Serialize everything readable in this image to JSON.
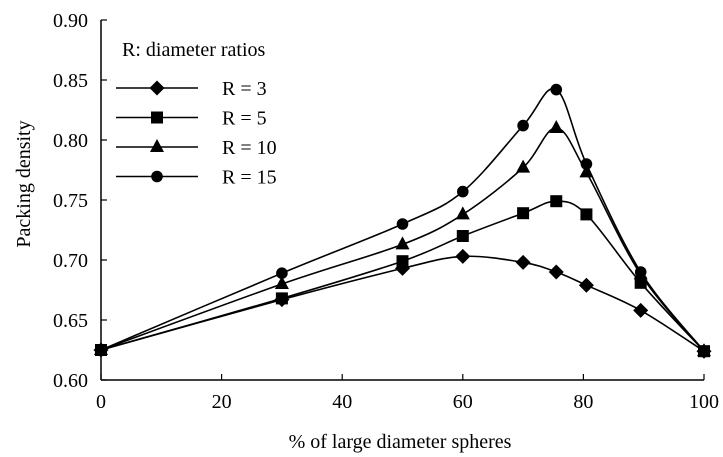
{
  "chart_data": {
    "type": "line",
    "title": "",
    "xlabel": "% of large diameter spheres",
    "ylabel": "Packing density",
    "xlim": [
      0,
      100
    ],
    "ylim": [
      0.6,
      0.9
    ],
    "x_ticks": [
      0,
      20,
      40,
      60,
      80,
      100
    ],
    "y_ticks": [
      0.6,
      0.65,
      0.7,
      0.75,
      0.8,
      0.85,
      0.9
    ],
    "x_tick_labels": [
      "0",
      "20",
      "40",
      "60",
      "80",
      "100"
    ],
    "y_tick_labels": [
      "0.60",
      "0.65",
      "0.70",
      "0.75",
      "0.80",
      "0.85",
      "0.90"
    ],
    "grid": false,
    "legend": {
      "title": "R: diameter ratios",
      "placement": "top-left"
    },
    "series": [
      {
        "name": "R = 3",
        "marker": "diamond",
        "x": [
          0,
          30,
          50,
          60,
          70,
          75.5,
          80.5,
          89.5,
          100
        ],
        "y": [
          0.625,
          0.667,
          0.693,
          0.703,
          0.698,
          0.69,
          0.679,
          0.658,
          0.624
        ]
      },
      {
        "name": "R = 5",
        "marker": "square",
        "x": [
          0,
          30,
          50,
          60,
          70,
          75.5,
          80.5,
          89.5,
          100
        ],
        "y": [
          0.625,
          0.668,
          0.699,
          0.72,
          0.739,
          0.749,
          0.738,
          0.681,
          0.624
        ]
      },
      {
        "name": "R = 10",
        "marker": "triangle",
        "x": [
          0,
          30,
          50,
          60,
          70,
          75.5,
          80.5,
          89.5,
          100
        ],
        "y": [
          0.625,
          0.68,
          0.713,
          0.738,
          0.777,
          0.81,
          0.773,
          0.688,
          0.624
        ]
      },
      {
        "name": "R = 15",
        "marker": "circle",
        "x": [
          0,
          30,
          50,
          60,
          70,
          75.5,
          80.5,
          89.5,
          100
        ],
        "y": [
          0.625,
          0.689,
          0.73,
          0.757,
          0.812,
          0.842,
          0.78,
          0.69,
          0.624
        ]
      }
    ]
  }
}
